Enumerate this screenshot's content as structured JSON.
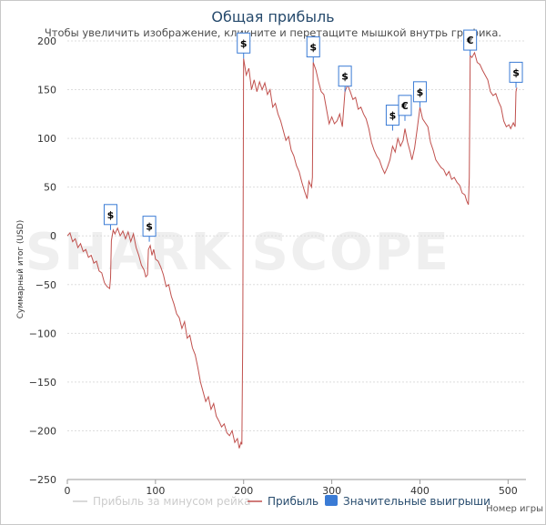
{
  "chart_data": {
    "type": "line",
    "title": "Общая прибыль",
    "subtitle": "Чтобы увеличить изображение, кликните и перетащите мышкой внутрь графика.",
    "xlabel": "Номер игры",
    "ylabel": "Суммарный итог (USD)",
    "xlim": [
      0,
      510
    ],
    "ylim": [
      -250,
      200
    ],
    "x_ticks": [
      0,
      100,
      200,
      300,
      400,
      500
    ],
    "y_ticks": [
      -250,
      -200,
      -150,
      -100,
      -50,
      0,
      50,
      100,
      150,
      200
    ],
    "grid": true,
    "legend_position": "bottom",
    "series": [
      {
        "name": "Прибыль",
        "color": "#c0504d",
        "points": [
          [
            0,
            0
          ],
          [
            3,
            3
          ],
          [
            6,
            -6
          ],
          [
            9,
            -3
          ],
          [
            12,
            -12
          ],
          [
            15,
            -8
          ],
          [
            18,
            -16
          ],
          [
            21,
            -14
          ],
          [
            24,
            -22
          ],
          [
            27,
            -20
          ],
          [
            30,
            -28
          ],
          [
            33,
            -26
          ],
          [
            36,
            -36
          ],
          [
            39,
            -38
          ],
          [
            42,
            -48
          ],
          [
            45,
            -52
          ],
          [
            48,
            -54
          ],
          [
            49,
            -43
          ],
          [
            50,
            -5
          ],
          [
            52,
            6
          ],
          [
            54,
            2
          ],
          [
            57,
            8
          ],
          [
            60,
            0
          ],
          [
            63,
            5
          ],
          [
            66,
            -3
          ],
          [
            69,
            4
          ],
          [
            72,
            -6
          ],
          [
            75,
            2
          ],
          [
            78,
            -12
          ],
          [
            81,
            -20
          ],
          [
            84,
            -30
          ],
          [
            87,
            -35
          ],
          [
            89,
            -42
          ],
          [
            91,
            -40
          ],
          [
            92,
            -14
          ],
          [
            94,
            -10
          ],
          [
            96,
            -20
          ],
          [
            98,
            -14
          ],
          [
            100,
            -24
          ],
          [
            103,
            -26
          ],
          [
            106,
            -32
          ],
          [
            109,
            -40
          ],
          [
            112,
            -52
          ],
          [
            115,
            -50
          ],
          [
            118,
            -62
          ],
          [
            121,
            -70
          ],
          [
            124,
            -80
          ],
          [
            127,
            -84
          ],
          [
            130,
            -95
          ],
          [
            133,
            -88
          ],
          [
            136,
            -105
          ],
          [
            139,
            -102
          ],
          [
            142,
            -115
          ],
          [
            145,
            -122
          ],
          [
            148,
            -135
          ],
          [
            151,
            -150
          ],
          [
            154,
            -160
          ],
          [
            157,
            -170
          ],
          [
            160,
            -165
          ],
          [
            163,
            -178
          ],
          [
            166,
            -172
          ],
          [
            169,
            -185
          ],
          [
            172,
            -190
          ],
          [
            175,
            -196
          ],
          [
            178,
            -193
          ],
          [
            181,
            -202
          ],
          [
            184,
            -205
          ],
          [
            187,
            -200
          ],
          [
            190,
            -212
          ],
          [
            193,
            -208
          ],
          [
            195,
            -218
          ],
          [
            197,
            -212
          ],
          [
            198,
            -214
          ],
          [
            199,
            -100
          ],
          [
            200,
            182
          ],
          [
            203,
            165
          ],
          [
            206,
            172
          ],
          [
            209,
            150
          ],
          [
            212,
            160
          ],
          [
            215,
            148
          ],
          [
            218,
            158
          ],
          [
            221,
            150
          ],
          [
            224,
            157
          ],
          [
            227,
            145
          ],
          [
            230,
            150
          ],
          [
            233,
            132
          ],
          [
            236,
            136
          ],
          [
            239,
            125
          ],
          [
            242,
            118
          ],
          [
            245,
            108
          ],
          [
            248,
            98
          ],
          [
            251,
            102
          ],
          [
            254,
            88
          ],
          [
            257,
            82
          ],
          [
            260,
            72
          ],
          [
            263,
            66
          ],
          [
            266,
            55
          ],
          [
            269,
            46
          ],
          [
            272,
            38
          ],
          [
            274,
            56
          ],
          [
            277,
            50
          ],
          [
            278,
            60
          ],
          [
            279,
            178
          ],
          [
            282,
            170
          ],
          [
            285,
            158
          ],
          [
            288,
            148
          ],
          [
            291,
            145
          ],
          [
            294,
            130
          ],
          [
            297,
            115
          ],
          [
            300,
            122
          ],
          [
            303,
            115
          ],
          [
            306,
            118
          ],
          [
            309,
            125
          ],
          [
            312,
            112
          ],
          [
            315,
            148
          ],
          [
            318,
            155
          ],
          [
            321,
            148
          ],
          [
            324,
            140
          ],
          [
            327,
            142
          ],
          [
            330,
            130
          ],
          [
            333,
            132
          ],
          [
            336,
            125
          ],
          [
            339,
            120
          ],
          [
            342,
            110
          ],
          [
            345,
            96
          ],
          [
            348,
            88
          ],
          [
            351,
            82
          ],
          [
            354,
            78
          ],
          [
            357,
            70
          ],
          [
            360,
            64
          ],
          [
            363,
            70
          ],
          [
            366,
            78
          ],
          [
            369,
            92
          ],
          [
            372,
            86
          ],
          [
            375,
            100
          ],
          [
            378,
            92
          ],
          [
            381,
            98
          ],
          [
            383,
            110
          ],
          [
            386,
            96
          ],
          [
            389,
            86
          ],
          [
            391,
            78
          ],
          [
            394,
            90
          ],
          [
            397,
            110
          ],
          [
            400,
            132
          ],
          [
            403,
            120
          ],
          [
            406,
            116
          ],
          [
            409,
            112
          ],
          [
            412,
            96
          ],
          [
            415,
            88
          ],
          [
            418,
            78
          ],
          [
            421,
            74
          ],
          [
            424,
            70
          ],
          [
            427,
            68
          ],
          [
            430,
            62
          ],
          [
            433,
            66
          ],
          [
            436,
            58
          ],
          [
            439,
            60
          ],
          [
            442,
            55
          ],
          [
            445,
            52
          ],
          [
            448,
            44
          ],
          [
            451,
            42
          ],
          [
            453,
            36
          ],
          [
            455,
            32
          ],
          [
            456,
            60
          ],
          [
            457,
            185
          ],
          [
            459,
            183
          ],
          [
            462,
            188
          ],
          [
            465,
            178
          ],
          [
            468,
            176
          ],
          [
            471,
            170
          ],
          [
            474,
            165
          ],
          [
            477,
            160
          ],
          [
            480,
            148
          ],
          [
            483,
            144
          ],
          [
            486,
            146
          ],
          [
            489,
            138
          ],
          [
            492,
            132
          ],
          [
            495,
            118
          ],
          [
            498,
            112
          ],
          [
            501,
            114
          ],
          [
            503,
            110
          ],
          [
            506,
            116
          ],
          [
            508,
            112
          ],
          [
            509,
            148
          ],
          [
            510,
            152
          ]
        ]
      }
    ],
    "markers": [
      {
        "x": 49,
        "y": 6,
        "symbol": "$"
      },
      {
        "x": 93,
        "y": -6,
        "symbol": "$"
      },
      {
        "x": 200,
        "y": 182,
        "symbol": "$"
      },
      {
        "x": 279,
        "y": 178,
        "symbol": "$"
      },
      {
        "x": 315,
        "y": 148,
        "symbol": "$"
      },
      {
        "x": 369,
        "y": 108,
        "symbol": "$"
      },
      {
        "x": 383,
        "y": 118,
        "symbol": "€"
      },
      {
        "x": 400,
        "y": 132,
        "symbol": "$"
      },
      {
        "x": 457,
        "y": 185,
        "symbol": "€"
      },
      {
        "x": 509,
        "y": 152,
        "symbol": "$"
      }
    ],
    "legend": [
      {
        "label": "Прибыль за минусом рейка",
        "color": "#cccccc",
        "active": false
      },
      {
        "label": "Прибыль",
        "color": "#c0504d",
        "active": true
      },
      {
        "label": "Значительные выигрыши",
        "color": "#3a7bd5",
        "active": true
      }
    ]
  },
  "watermark": "SHARK SCOPE"
}
